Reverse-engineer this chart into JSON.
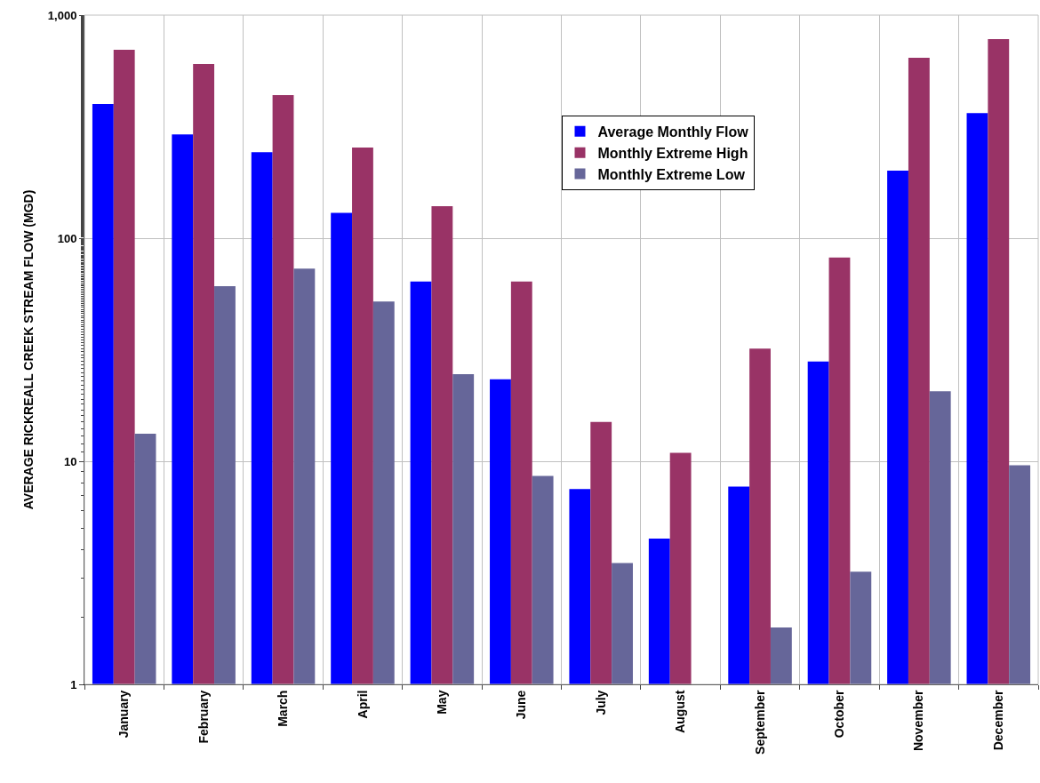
{
  "chart_data": {
    "type": "bar",
    "ylabel": "AVERAGE RICKREALL CREEK STREAM FLOW (MGD)",
    "categories": [
      "January",
      "February",
      "March",
      "April",
      "May",
      "June",
      "July",
      "August",
      "September",
      "October",
      "November",
      "December"
    ],
    "series": [
      {
        "name": "Average Monthly Flow",
        "color": "#0000ff",
        "values": [
          400,
          292,
          243,
          130,
          64,
          23.3,
          7.5,
          4.5,
          7.7,
          28,
          201,
          364
        ]
      },
      {
        "name": "Monthly Extreme High",
        "color": "#993366",
        "values": [
          700,
          604,
          438,
          255,
          139,
          64,
          15,
          10.9,
          32,
          82,
          644,
          780
        ]
      },
      {
        "name": "Monthly Extreme Low",
        "color": "#666699",
        "values": [
          13.3,
          61,
          73,
          52,
          24.6,
          8.6,
          3.5,
          null,
          1.8,
          3.2,
          20.6,
          9.6
        ]
      }
    ],
    "log": "y",
    "ylim": [
      1,
      1000
    ],
    "yticks": [
      1,
      10,
      100,
      {
        "value": 1000,
        "label": "1,000"
      }
    ],
    "grid": true,
    "legend": "top"
  }
}
